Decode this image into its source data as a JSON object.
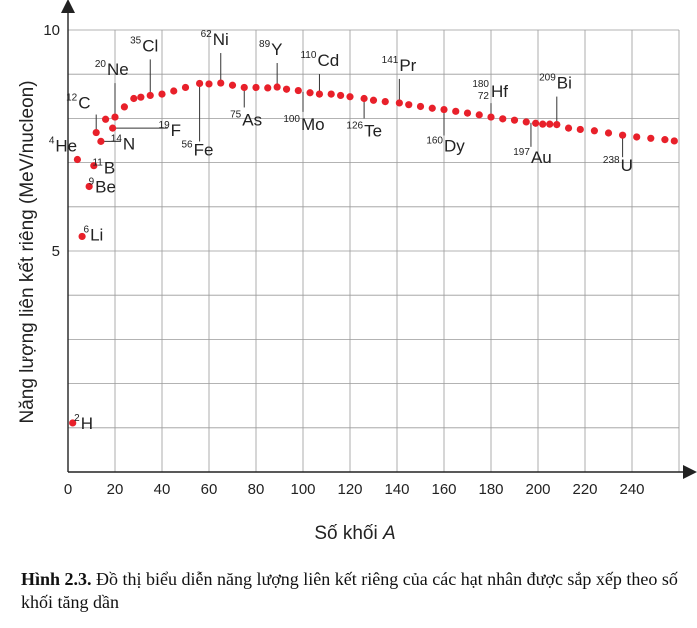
{
  "chart_data": {
    "type": "scatter",
    "xlabel_text": "Số khối",
    "xlabel_var": "A",
    "ylabel": "Năng lượng liên kết riêng (MeV/nucleon)",
    "xlim": [
      0,
      260
    ],
    "ylim": [
      0,
      10
    ],
    "x_ticks": [
      0,
      20,
      40,
      60,
      80,
      100,
      120,
      140,
      160,
      180,
      200,
      220,
      240
    ],
    "y_ticks": [
      5,
      10
    ],
    "grid": true,
    "marker_color": "#e8202a",
    "points": [
      {
        "x": 2,
        "y": 1.11
      },
      {
        "x": 6,
        "y": 5.33
      },
      {
        "x": 9,
        "y": 6.46
      },
      {
        "x": 11,
        "y": 6.93
      },
      {
        "x": 4,
        "y": 7.07
      },
      {
        "x": 12,
        "y": 7.68
      },
      {
        "x": 14,
        "y": 7.48
      },
      {
        "x": 16,
        "y": 7.98
      },
      {
        "x": 19,
        "y": 7.78
      },
      {
        "x": 20,
        "y": 8.03
      },
      {
        "x": 24,
        "y": 8.26
      },
      {
        "x": 28,
        "y": 8.45
      },
      {
        "x": 31,
        "y": 8.48
      },
      {
        "x": 35,
        "y": 8.52
      },
      {
        "x": 40,
        "y": 8.55
      },
      {
        "x": 45,
        "y": 8.62
      },
      {
        "x": 50,
        "y": 8.7
      },
      {
        "x": 56,
        "y": 8.79
      },
      {
        "x": 60,
        "y": 8.78
      },
      {
        "x": 65,
        "y": 8.8
      },
      {
        "x": 70,
        "y": 8.75
      },
      {
        "x": 75,
        "y": 8.7
      },
      {
        "x": 80,
        "y": 8.7
      },
      {
        "x": 85,
        "y": 8.69
      },
      {
        "x": 89,
        "y": 8.71
      },
      {
        "x": 93,
        "y": 8.66
      },
      {
        "x": 98,
        "y": 8.63
      },
      {
        "x": 103,
        "y": 8.58
      },
      {
        "x": 107,
        "y": 8.55
      },
      {
        "x": 112,
        "y": 8.55
      },
      {
        "x": 116,
        "y": 8.52
      },
      {
        "x": 120,
        "y": 8.49
      },
      {
        "x": 126,
        "y": 8.45
      },
      {
        "x": 130,
        "y": 8.41
      },
      {
        "x": 135,
        "y": 8.38
      },
      {
        "x": 141,
        "y": 8.35
      },
      {
        "x": 145,
        "y": 8.31
      },
      {
        "x": 150,
        "y": 8.27
      },
      {
        "x": 155,
        "y": 8.23
      },
      {
        "x": 160,
        "y": 8.2
      },
      {
        "x": 165,
        "y": 8.16
      },
      {
        "x": 170,
        "y": 8.12
      },
      {
        "x": 175,
        "y": 8.08
      },
      {
        "x": 180,
        "y": 8.03
      },
      {
        "x": 185,
        "y": 7.99
      },
      {
        "x": 190,
        "y": 7.96
      },
      {
        "x": 195,
        "y": 7.92
      },
      {
        "x": 199,
        "y": 7.89
      },
      {
        "x": 202,
        "y": 7.87
      },
      {
        "x": 205,
        "y": 7.87
      },
      {
        "x": 208,
        "y": 7.86
      },
      {
        "x": 213,
        "y": 7.78
      },
      {
        "x": 218,
        "y": 7.75
      },
      {
        "x": 224,
        "y": 7.72
      },
      {
        "x": 230,
        "y": 7.67
      },
      {
        "x": 236,
        "y": 7.62
      },
      {
        "x": 242,
        "y": 7.58
      },
      {
        "x": 248,
        "y": 7.55
      },
      {
        "x": 254,
        "y": 7.52
      },
      {
        "x": 258,
        "y": 7.49
      }
    ],
    "annotations": [
      {
        "sup": "2",
        "name": "H",
        "x": 2,
        "y": 1.11
      },
      {
        "sup": "6",
        "name": "Li",
        "x": 6,
        "y": 5.33
      },
      {
        "sup": "9",
        "name": "Be",
        "x": 9,
        "y": 6.46
      },
      {
        "sup": "11",
        "name": "B",
        "x": 11,
        "y": 6.93
      },
      {
        "sup": "4",
        "name": "He",
        "x": 4,
        "y": 7.07
      },
      {
        "sup": "12",
        "name": "C",
        "x": 12,
        "y": 7.68
      },
      {
        "sup": "14",
        "name": "N",
        "x": 14,
        "y": 7.48
      },
      {
        "sup": "19",
        "name": "F",
        "x": 19,
        "y": 7.78
      },
      {
        "sup": "20",
        "name": "Ne",
        "x": 20,
        "y": 8.03
      },
      {
        "sup": "35",
        "name": "Cl",
        "x": 35,
        "y": 8.52
      },
      {
        "sup": "56",
        "name": "Fe",
        "x": 56,
        "y": 8.79
      },
      {
        "sup": "62",
        "name": "Ni",
        "x": 65,
        "y": 8.8
      },
      {
        "sup": "75",
        "name": "As",
        "x": 75,
        "y": 8.7
      },
      {
        "sup": "89",
        "name": "Y",
        "x": 89,
        "y": 8.71
      },
      {
        "sup": "100",
        "name": "Mo",
        "x": 100,
        "y": 8.6
      },
      {
        "sup": "110",
        "name": "Cd",
        "x": 107,
        "y": 8.55
      },
      {
        "sup": "126",
        "name": "Te",
        "x": 126,
        "y": 8.45
      },
      {
        "sup": "141",
        "name": "Pr",
        "x": 141,
        "y": 8.35
      },
      {
        "sup": "160",
        "name": "Dy",
        "x": 160,
        "y": 8.2
      },
      {
        "sup": "180",
        "sup2": "72",
        "name": "Hf",
        "x": 180,
        "y": 8.03
      },
      {
        "sup": "197",
        "name": "Au",
        "x": 197,
        "y": 7.9
      },
      {
        "sup": "209",
        "name": "Bi",
        "x": 208,
        "y": 7.86
      },
      {
        "sup": "238",
        "name": "U",
        "x": 236,
        "y": 7.62
      }
    ]
  },
  "caption": {
    "label": "Hình 2.3.",
    "text": " Đồ thị biểu diễn năng lượng liên kết riêng của các hạt nhân được sắp xếp theo số khối tăng dần"
  }
}
